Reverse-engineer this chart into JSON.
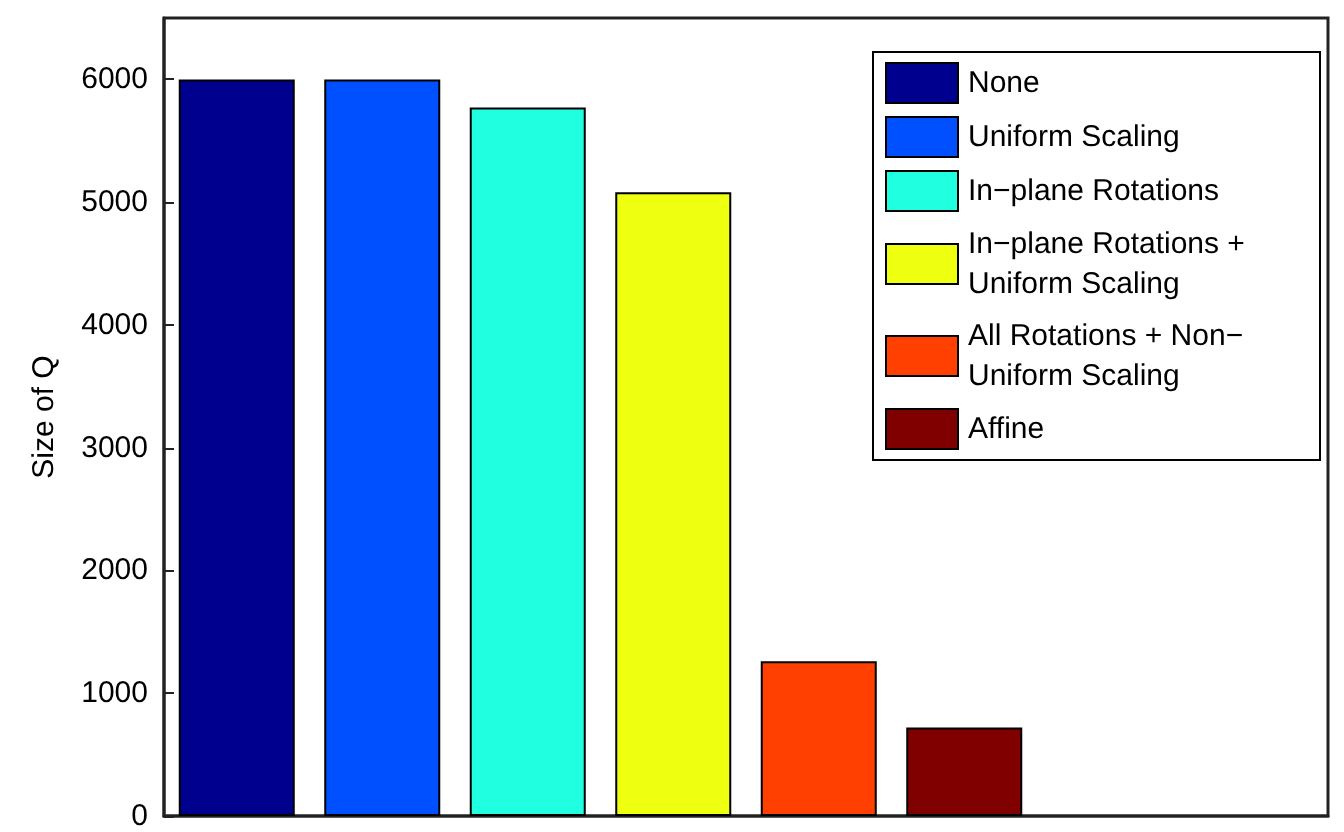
{
  "chart_data": {
    "type": "bar",
    "ylabel": "Size of Q",
    "categories": [
      null,
      null,
      null,
      null,
      null,
      null
    ],
    "series": [
      {
        "name": "None",
        "color": "#00008f",
        "values": [
          6000,
          null,
          null,
          null,
          null,
          null
        ]
      },
      {
        "name": "Uniform Scaling",
        "color": "#0050ff",
        "values": [
          null,
          6000,
          null,
          null,
          null,
          null
        ]
      },
      {
        "name": "In−plane Rotations",
        "color": "#20ffdf",
        "values": [
          null,
          null,
          5770,
          null,
          null,
          null
        ]
      },
      {
        "name": "In−plane Rotations + Uniform Scaling",
        "color": "#efff10",
        "values": [
          null,
          null,
          null,
          5080,
          null,
          null
        ]
      },
      {
        "name": "All Rotations + Non−Uniform Scaling",
        "color": "#ff4000",
        "values": [
          null,
          null,
          null,
          null,
          1260,
          null
        ]
      },
      {
        "name": "Affine",
        "color": "#800000",
        "values": [
          null,
          null,
          null,
          null,
          null,
          720
        ]
      }
    ],
    "stacked": true,
    "ylim": [
      0,
      6500
    ],
    "yticks": [
      0,
      1000,
      2000,
      3000,
      4000,
      5000,
      6000
    ],
    "grid": false,
    "legend": "top right"
  }
}
